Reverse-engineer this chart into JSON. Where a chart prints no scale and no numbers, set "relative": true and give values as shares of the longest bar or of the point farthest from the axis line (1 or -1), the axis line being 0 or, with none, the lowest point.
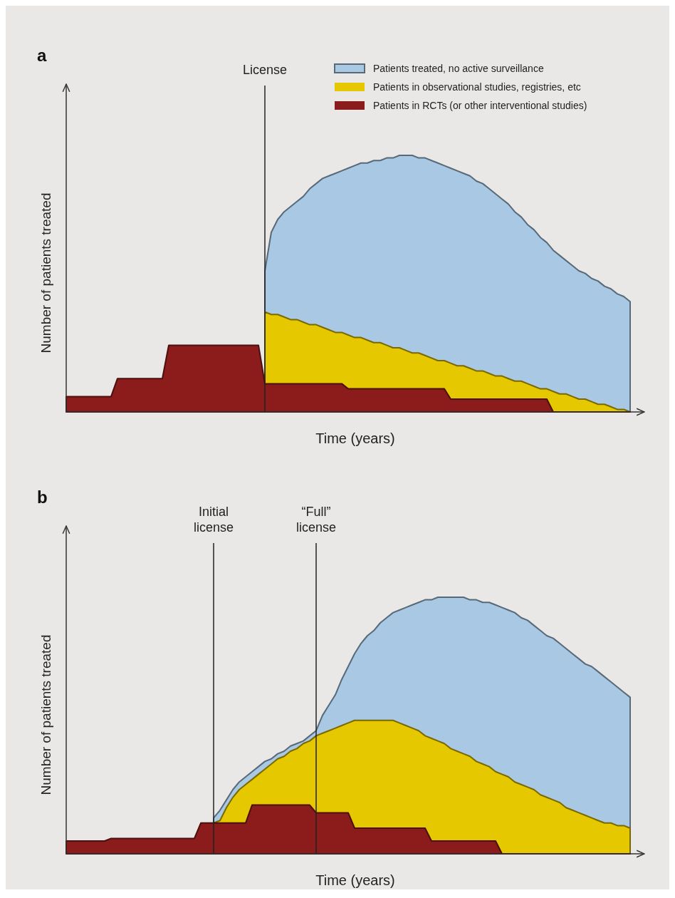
{
  "chart_data": [
    {
      "type": "area",
      "title": "a",
      "xlabel": "Time (years)",
      "ylabel": "Number of patients treated",
      "relative": true,
      "legend": "top right",
      "categories": [
        null,
        null,
        null,
        null,
        null,
        null,
        null,
        null,
        null,
        null,
        null,
        null,
        null,
        null,
        null,
        null,
        null,
        null,
        null,
        null,
        null,
        null,
        null,
        null,
        null,
        null,
        null,
        null,
        null,
        null,
        null,
        null,
        null,
        null,
        null,
        null,
        null,
        null,
        null,
        null,
        null,
        null,
        null,
        null,
        null,
        null,
        null,
        null,
        null,
        null,
        null,
        null,
        null,
        null,
        null,
        null,
        null,
        null,
        null,
        null,
        null,
        null,
        null,
        null,
        null,
        null,
        null,
        null,
        null,
        null,
        null,
        null,
        null,
        null,
        null,
        null,
        null,
        null,
        null,
        null,
        null,
        null,
        null,
        null,
        null,
        null,
        null,
        null,
        null
      ],
      "series": [
        {
          "name": "Patients treated, no active surveillance",
          "color": "#a8c8e4",
          "values": [
            null,
            null,
            null,
            null,
            null,
            null,
            null,
            null,
            null,
            null,
            null,
            null,
            null,
            null,
            null,
            null,
            null,
            null,
            null,
            null,
            null,
            null,
            null,
            null,
            null,
            null,
            null,
            null,
            null,
            null,
            null,
            0.55,
            0.7,
            0.75,
            0.78,
            0.8,
            0.82,
            0.84,
            0.87,
            0.89,
            0.91,
            0.92,
            0.93,
            0.94,
            0.95,
            0.96,
            0.97,
            0.97,
            0.98,
            0.98,
            0.99,
            0.99,
            1,
            1,
            1,
            0.99,
            0.99,
            0.98,
            0.97,
            0.96,
            0.95,
            0.94,
            0.93,
            0.92,
            0.9,
            0.89,
            0.87,
            0.85,
            0.83,
            0.81,
            0.78,
            0.76,
            0.73,
            0.71,
            0.68,
            0.66,
            0.63,
            0.61,
            0.59,
            0.57,
            0.55,
            0.54,
            0.52,
            0.51,
            0.49,
            0.48,
            0.46,
            0.45,
            0.43
          ]
        },
        {
          "name": "Patients in observational studies, registries, etc",
          "color": "#e6c800",
          "values": [
            null,
            null,
            null,
            null,
            null,
            null,
            null,
            null,
            null,
            null,
            null,
            null,
            null,
            null,
            null,
            null,
            null,
            null,
            null,
            null,
            null,
            null,
            null,
            null,
            null,
            null,
            null,
            null,
            null,
            null,
            null,
            0.39,
            0.38,
            0.38,
            0.37,
            0.36,
            0.36,
            0.35,
            0.34,
            0.34,
            0.33,
            0.32,
            0.31,
            0.31,
            0.3,
            0.29,
            0.29,
            0.28,
            0.27,
            0.27,
            0.26,
            0.25,
            0.25,
            0.24,
            0.23,
            0.23,
            0.22,
            0.21,
            0.2,
            0.2,
            0.19,
            0.18,
            0.18,
            0.17,
            0.16,
            0.16,
            0.15,
            0.14,
            0.14,
            0.13,
            0.12,
            0.12,
            0.11,
            0.1,
            0.09,
            0.09,
            0.08,
            0.07,
            0.07,
            0.06,
            0.05,
            0.05,
            0.04,
            0.03,
            0.03,
            0.02,
            0.01,
            0.01,
            0
          ]
        },
        {
          "name": "Patients in RCTs (or other interventional studies)",
          "color": "#8c1c1c",
          "values": [
            0.06,
            0.06,
            0.06,
            0.06,
            0.06,
            0.06,
            0.06,
            0.06,
            0.13,
            0.13,
            0.13,
            0.13,
            0.13,
            0.13,
            0.13,
            0.13,
            0.26,
            0.26,
            0.26,
            0.26,
            0.26,
            0.26,
            0.26,
            0.26,
            0.26,
            0.26,
            0.26,
            0.26,
            0.26,
            0.26,
            0.26,
            0.11,
            0.11,
            0.11,
            0.11,
            0.11,
            0.11,
            0.11,
            0.11,
            0.11,
            0.11,
            0.11,
            0.11,
            0.11,
            0.09,
            0.09,
            0.09,
            0.09,
            0.09,
            0.09,
            0.09,
            0.09,
            0.09,
            0.09,
            0.09,
            0.09,
            0.09,
            0.09,
            0.09,
            0.09,
            0.05,
            0.05,
            0.05,
            0.05,
            0.05,
            0.05,
            0.05,
            0.05,
            0.05,
            0.05,
            0.05,
            0.05,
            0.05,
            0.05,
            0.05,
            0.05,
            0,
            0,
            0,
            0,
            0,
            0,
            0,
            0,
            0,
            0,
            0,
            0,
            0
          ]
        }
      ],
      "annotations": [
        "License"
      ]
    },
    {
      "type": "area",
      "title": "b",
      "xlabel": "Time (years)",
      "ylabel": "Number of patients treated",
      "relative": true,
      "categories": [
        null,
        null,
        null,
        null,
        null,
        null,
        null,
        null,
        null,
        null,
        null,
        null,
        null,
        null,
        null,
        null,
        null,
        null,
        null,
        null,
        null,
        null,
        null,
        null,
        null,
        null,
        null,
        null,
        null,
        null,
        null,
        null,
        null,
        null,
        null,
        null,
        null,
        null,
        null,
        null,
        null,
        null,
        null,
        null,
        null,
        null,
        null,
        null,
        null,
        null,
        null,
        null,
        null,
        null,
        null,
        null,
        null,
        null,
        null,
        null,
        null,
        null,
        null,
        null,
        null,
        null,
        null,
        null,
        null,
        null,
        null,
        null,
        null,
        null,
        null,
        null,
        null,
        null,
        null,
        null,
        null,
        null,
        null,
        null,
        null,
        null,
        null,
        null,
        null
      ],
      "series": [
        {
          "color": "#a8c8e4",
          "values": [
            null,
            null,
            null,
            null,
            null,
            null,
            null,
            null,
            null,
            null,
            null,
            null,
            null,
            null,
            null,
            null,
            null,
            null,
            null,
            null,
            null,
            null,
            null,
            0.14,
            0.17,
            0.21,
            0.25,
            0.28,
            0.3,
            0.32,
            0.34,
            0.36,
            0.37,
            0.39,
            0.4,
            0.42,
            0.43,
            0.44,
            0.46,
            0.48,
            0.54,
            0.58,
            0.62,
            0.68,
            0.73,
            0.78,
            0.82,
            0.85,
            0.87,
            0.9,
            0.92,
            0.94,
            0.95,
            0.96,
            0.97,
            0.98,
            0.99,
            0.99,
            1,
            1,
            1,
            1,
            1,
            0.99,
            0.99,
            0.98,
            0.98,
            0.97,
            0.96,
            0.95,
            0.94,
            0.92,
            0.91,
            0.89,
            0.87,
            0.85,
            0.84,
            0.82,
            0.8,
            0.78,
            0.76,
            0.74,
            0.73,
            0.71,
            0.69,
            0.67,
            0.65,
            0.63,
            0.61
          ]
        },
        {
          "color": "#e6c800",
          "values": [
            null,
            null,
            null,
            null,
            null,
            null,
            null,
            null,
            null,
            null,
            null,
            null,
            null,
            null,
            null,
            null,
            null,
            null,
            null,
            null,
            null,
            null,
            null,
            0.12,
            0.13,
            0.18,
            0.22,
            0.25,
            0.27,
            0.29,
            0.31,
            0.33,
            0.35,
            0.37,
            0.38,
            0.4,
            0.41,
            0.43,
            0.44,
            0.46,
            0.47,
            0.48,
            0.49,
            0.5,
            0.51,
            0.52,
            0.52,
            0.52,
            0.52,
            0.52,
            0.52,
            0.52,
            0.51,
            0.5,
            0.49,
            0.48,
            0.46,
            0.45,
            0.44,
            0.43,
            0.41,
            0.4,
            0.39,
            0.38,
            0.36,
            0.35,
            0.34,
            0.32,
            0.31,
            0.3,
            0.28,
            0.27,
            0.26,
            0.25,
            0.23,
            0.22,
            0.21,
            0.2,
            0.18,
            0.17,
            0.16,
            0.15,
            0.14,
            0.13,
            0.12,
            0.12,
            0.11,
            0.11,
            0.1
          ]
        },
        {
          "color": "#8c1c1c",
          "values": [
            0.05,
            0.05,
            0.05,
            0.05,
            0.05,
            0.05,
            0.05,
            0.06,
            0.06,
            0.06,
            0.06,
            0.06,
            0.06,
            0.06,
            0.06,
            0.06,
            0.06,
            0.06,
            0.06,
            0.06,
            0.06,
            0.12,
            0.12,
            0.12,
            0.12,
            0.12,
            0.12,
            0.12,
            0.12,
            0.19,
            0.19,
            0.19,
            0.19,
            0.19,
            0.19,
            0.19,
            0.19,
            0.19,
            0.19,
            0.16,
            0.16,
            0.16,
            0.16,
            0.16,
            0.16,
            0.1,
            0.1,
            0.1,
            0.1,
            0.1,
            0.1,
            0.1,
            0.1,
            0.1,
            0.1,
            0.1,
            0.1,
            0.05,
            0.05,
            0.05,
            0.05,
            0.05,
            0.05,
            0.05,
            0.05,
            0.05,
            0.05,
            0.05,
            0,
            0,
            0,
            0,
            0,
            0,
            0,
            0,
            0,
            0,
            0,
            0,
            0,
            0,
            0,
            0,
            0,
            0,
            0,
            0,
            0
          ]
        }
      ],
      "annotations": [
        "Initial license",
        "“Full” license"
      ]
    }
  ]
}
